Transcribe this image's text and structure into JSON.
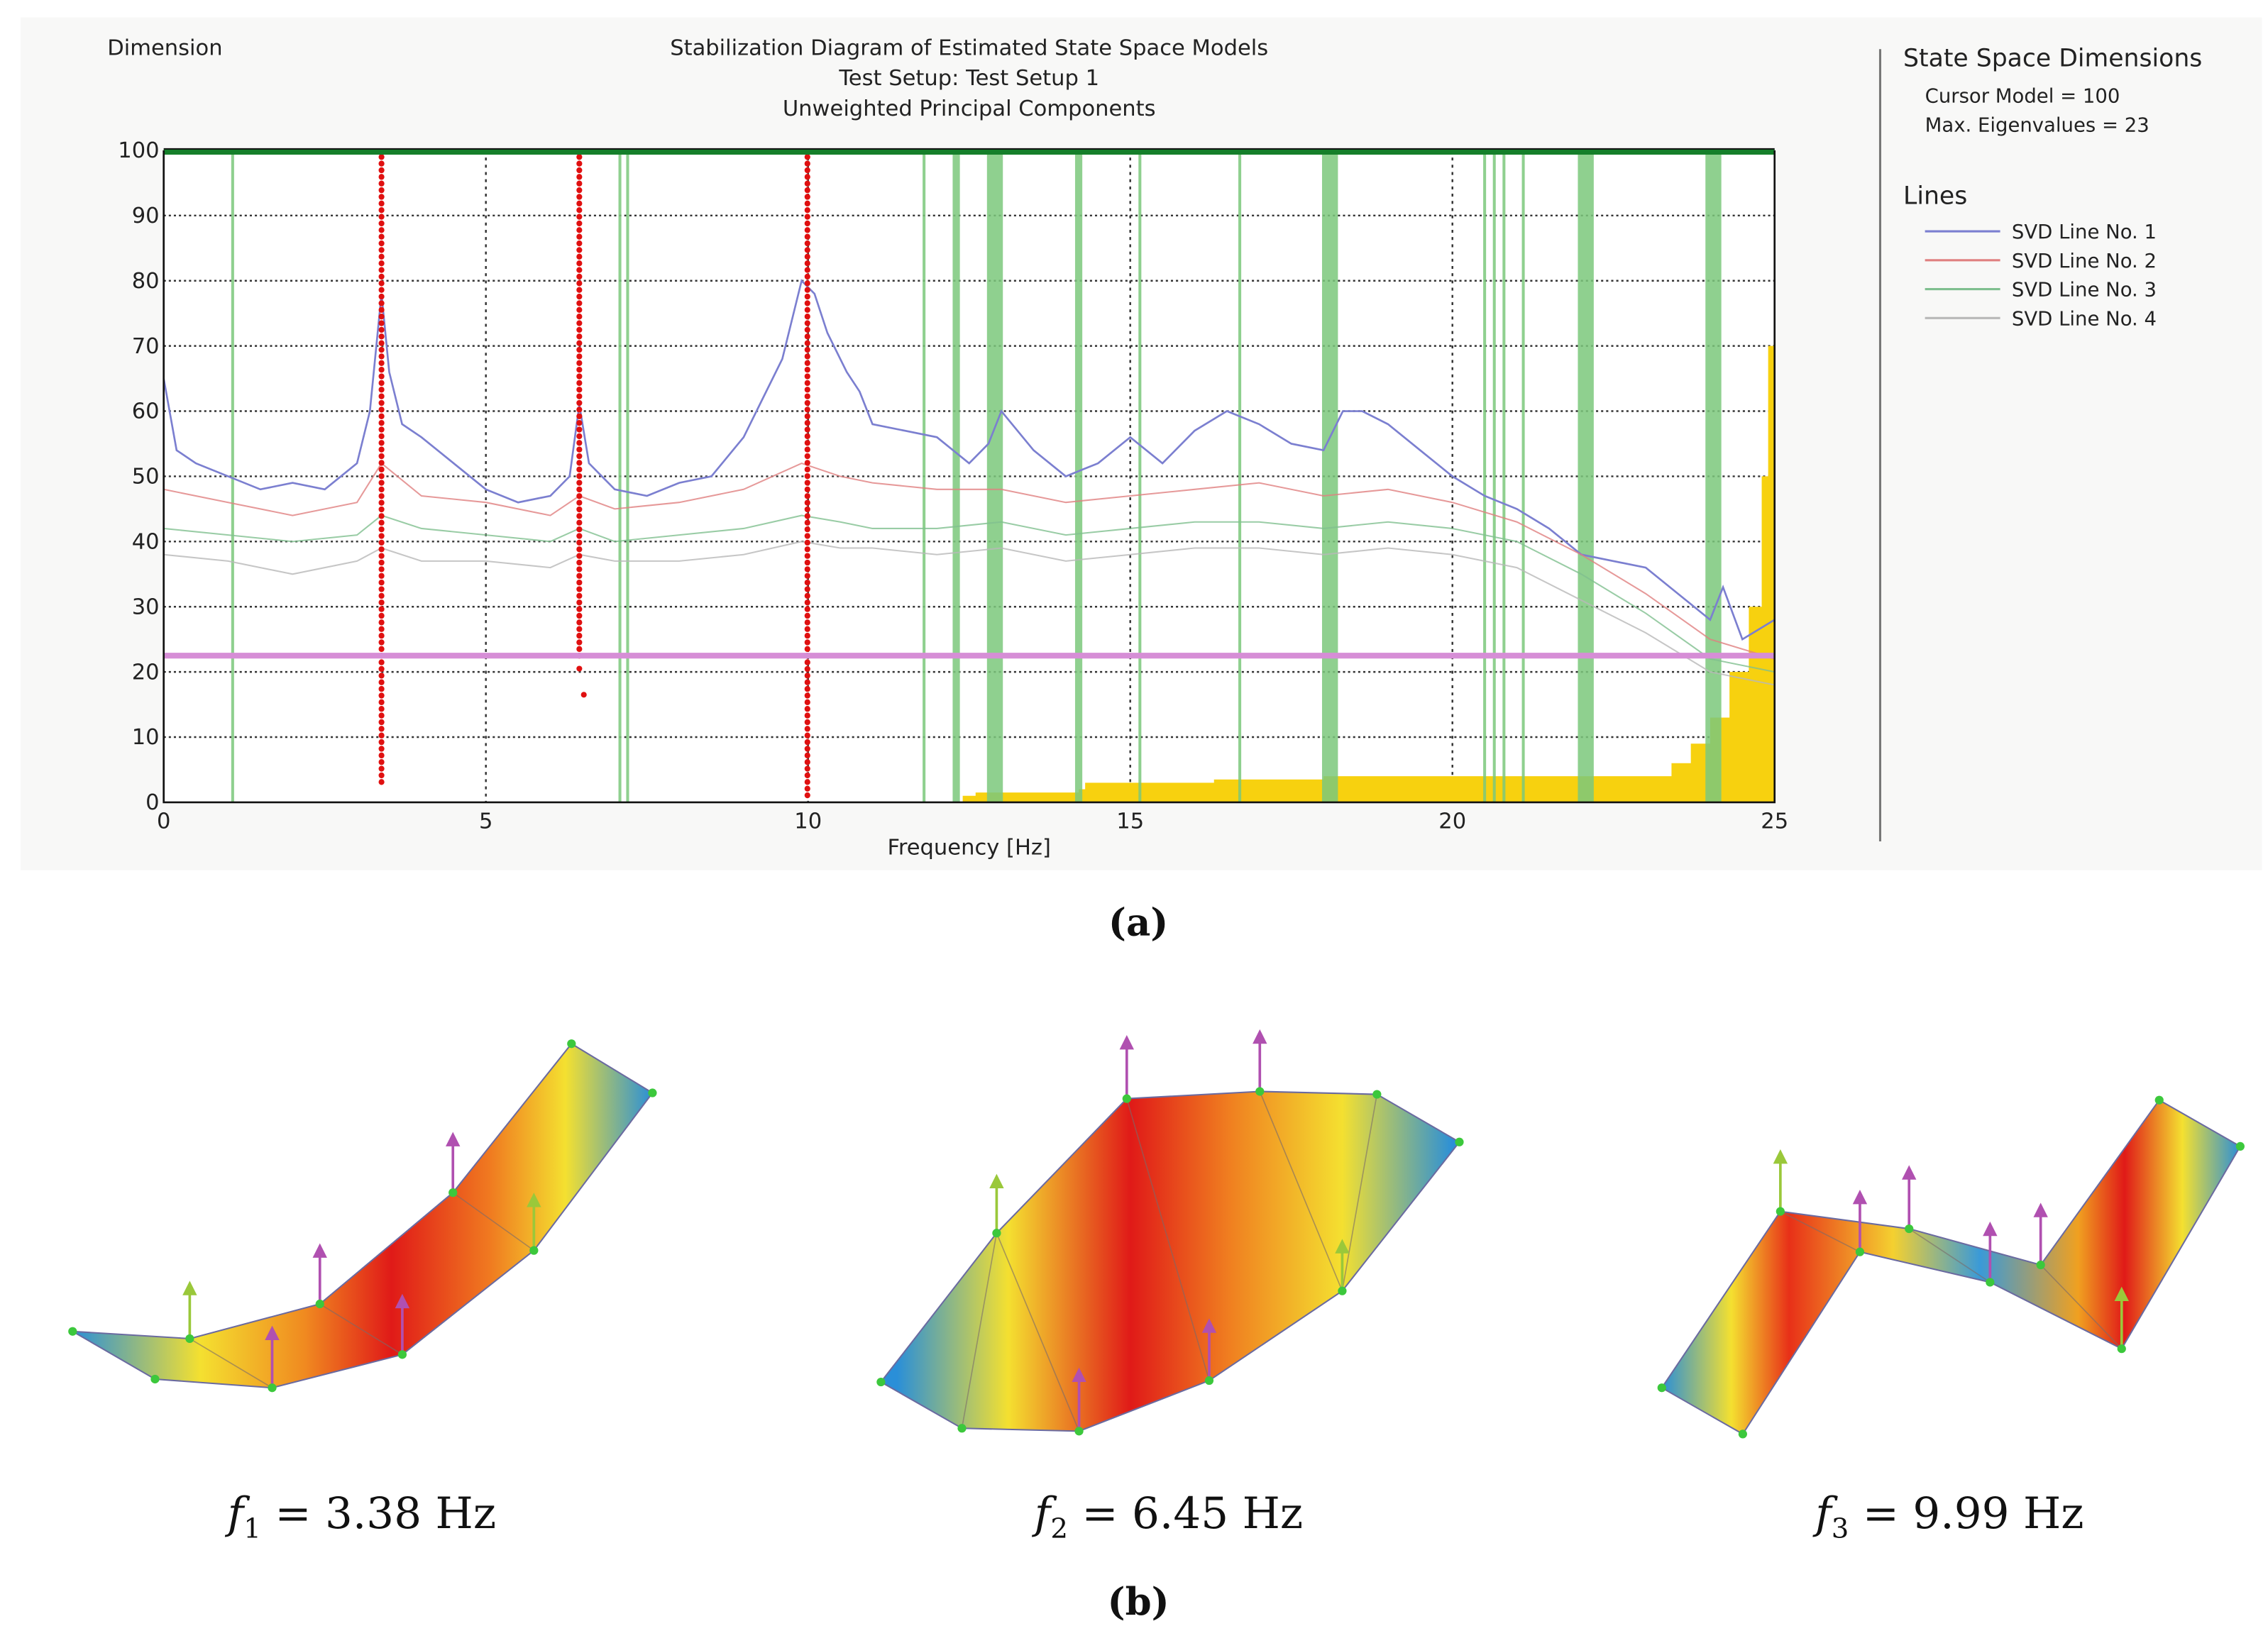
{
  "chart_data": {
    "type": "line",
    "corner_label": "Dimension",
    "title": "Stabilization Diagram of Estimated State Space Models",
    "subtitle1": "Test Setup: Test Setup 1",
    "subtitle2": "Unweighted Principal Components",
    "xlabel": "Frequency [Hz]",
    "ylabel": "",
    "xlim": [
      0,
      25
    ],
    "ylim": [
      0,
      100
    ],
    "xticks": [
      0,
      5,
      10,
      15,
      20,
      25
    ],
    "yticks": [
      0,
      10,
      20,
      30,
      40,
      50,
      60,
      70,
      80,
      90,
      100
    ],
    "grid": true,
    "legend": {
      "title": "State Space Dimensions",
      "cursor_model": "Cursor Model = 100",
      "max_eigenvalues": "Max. Eigenvalues = 23",
      "lines_title": "Lines",
      "placement": "right"
    },
    "series": [
      {
        "name": "SVD Line No. 1",
        "color": "#7b7fd0",
        "x": [
          0,
          0.2,
          0.5,
          1,
          1.5,
          2,
          2.5,
          3,
          3.2,
          3.38,
          3.5,
          3.7,
          4,
          4.5,
          5,
          5.5,
          6,
          6.3,
          6.45,
          6.6,
          6.8,
          7,
          7.5,
          8,
          8.5,
          9,
          9.3,
          9.6,
          9.9,
          10.1,
          10.3,
          10.6,
          10.8,
          11,
          11.5,
          12,
          12.5,
          12.8,
          13,
          13.5,
          14,
          14.5,
          15,
          15.5,
          16,
          16.5,
          17,
          17.5,
          18,
          18.3,
          18.6,
          19,
          19.5,
          20,
          20.5,
          21,
          21.5,
          22,
          22.5,
          23,
          23.5,
          24,
          24.2,
          24.5,
          25
        ],
        "y": [
          65,
          54,
          52,
          50,
          48,
          49,
          48,
          52,
          60,
          78,
          66,
          58,
          56,
          52,
          48,
          46,
          47,
          50,
          61,
          52,
          50,
          48,
          47,
          49,
          50,
          56,
          62,
          68,
          80,
          78,
          72,
          66,
          63,
          58,
          57,
          56,
          52,
          55,
          60,
          54,
          50,
          52,
          56,
          52,
          57,
          60,
          58,
          55,
          54,
          60,
          60,
          58,
          54,
          50,
          47,
          45,
          42,
          38,
          37,
          36,
          32,
          28,
          33,
          25,
          28
        ]
      },
      {
        "name": "SVD Line No. 2",
        "color": "#e08080",
        "x": [
          0,
          1,
          2,
          3,
          3.38,
          4,
          5,
          6,
          6.45,
          7,
          8,
          9,
          9.9,
          10.5,
          11,
          12,
          13,
          14,
          15,
          16,
          17,
          18,
          19,
          20,
          21,
          22,
          23,
          24,
          25
        ],
        "y": [
          48,
          46,
          44,
          46,
          52,
          47,
          46,
          44,
          47,
          45,
          46,
          48,
          52,
          50,
          49,
          48,
          48,
          46,
          47,
          48,
          49,
          47,
          48,
          46,
          43,
          38,
          32,
          25,
          22
        ]
      },
      {
        "name": "SVD Line No. 3",
        "color": "#7fbf8f",
        "x": [
          0,
          1,
          2,
          3,
          3.38,
          4,
          5,
          6,
          6.45,
          7,
          8,
          9,
          9.9,
          10.5,
          11,
          12,
          13,
          14,
          15,
          16,
          17,
          18,
          19,
          20,
          21,
          22,
          23,
          24,
          25
        ],
        "y": [
          42,
          41,
          40,
          41,
          44,
          42,
          41,
          40,
          42,
          40,
          41,
          42,
          44,
          43,
          42,
          42,
          43,
          41,
          42,
          43,
          43,
          42,
          43,
          42,
          40,
          35,
          29,
          22,
          20
        ]
      },
      {
        "name": "SVD Line No. 4",
        "color": "#b8b8b8",
        "x": [
          0,
          1,
          2,
          3,
          3.38,
          4,
          5,
          6,
          6.45,
          7,
          8,
          9,
          9.9,
          10.5,
          11,
          12,
          13,
          14,
          15,
          16,
          17,
          18,
          19,
          20,
          21,
          22,
          23,
          24,
          25
        ],
        "y": [
          38,
          37,
          35,
          37,
          39,
          37,
          37,
          36,
          38,
          37,
          37,
          38,
          40,
          39,
          39,
          38,
          39,
          37,
          38,
          39,
          39,
          38,
          39,
          38,
          36,
          31,
          26,
          20,
          18
        ]
      }
    ],
    "stable_poles": {
      "color": "#e01010",
      "frequencies": [
        3.38,
        6.45,
        9.99
      ],
      "order_from": [
        3,
        22,
        1
      ],
      "order_to": [
        99,
        99,
        99
      ]
    },
    "stable_frequency_bands": {
      "color": "#7cc87c",
      "thin": [
        1.07,
        7.08,
        7.2,
        11.8,
        15.15,
        16.7,
        20.5,
        20.65,
        20.8,
        21.1
      ],
      "medium": [
        12.3,
        14.2
      ],
      "thick": [
        12.9,
        18.1,
        22.07,
        24.05
      ]
    },
    "max_eigenvalues_line": {
      "value": 22.5,
      "color": "#d68ed6"
    },
    "top_line": {
      "value": 100,
      "color": "#157f2a"
    },
    "yellow_area": {
      "color": "#f7d10f",
      "x": [
        12.4,
        12.6,
        14.2,
        14.3,
        16.0,
        16.3,
        18.0,
        23.1,
        23.4,
        23.7,
        24.0,
        24.3,
        24.6,
        24.8,
        24.9,
        25.0
      ],
      "y": [
        1,
        1.5,
        2,
        3,
        3,
        3.5,
        4,
        4,
        6,
        9,
        13,
        20,
        30,
        50,
        70,
        100
      ]
    }
  },
  "figure": {
    "label_a": "(a)",
    "label_b": "(b)",
    "modes": [
      {
        "symbol": "f",
        "sub": "1",
        "eq": " =  3.38 Hz"
      },
      {
        "symbol": "f",
        "sub": "2",
        "eq": " =  6.45 Hz"
      },
      {
        "symbol": "f",
        "sub": "3",
        "eq": " =  9.99 Hz"
      }
    ]
  }
}
